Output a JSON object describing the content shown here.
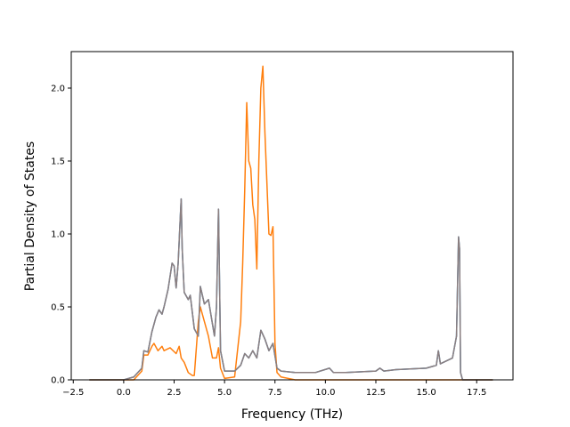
{
  "chart_data": {
    "type": "line",
    "title": "",
    "xlabel": "Frequency (THz)",
    "ylabel": "Partial Density of States",
    "xlim": [
      -2.6,
      19.3
    ],
    "ylim": [
      0,
      2.25
    ],
    "xticks": [
      -2.5,
      0.0,
      2.5,
      5.0,
      7.5,
      10.0,
      12.5,
      15.0,
      17.5
    ],
    "xtick_labels": [
      "−2.5",
      "0.0",
      "2.5",
      "5.0",
      "7.5",
      "10.0",
      "12.5",
      "15.0",
      "17.5"
    ],
    "yticks": [
      0.0,
      0.5,
      1.0,
      1.5,
      2.0
    ],
    "ytick_labels": [
      "0.0",
      "0.5",
      "1.0",
      "1.5",
      "2.0"
    ],
    "grid": false,
    "legend": "none",
    "series": [
      {
        "color": "#1f77b4",
        "x": [
          -1.7,
          0.0,
          0.5,
          0.9,
          1.0,
          1.2,
          1.4,
          1.6,
          1.75,
          1.9,
          2.0,
          2.2,
          2.4,
          2.5,
          2.6,
          2.7,
          2.8,
          2.85,
          2.9,
          3.0,
          3.2,
          3.3,
          3.5,
          3.7,
          3.8,
          4.0,
          4.2,
          4.5,
          4.6,
          4.7,
          4.8,
          5.0,
          5.5,
          5.8,
          6.0,
          6.2,
          6.4,
          6.6,
          6.8,
          7.0,
          7.2,
          7.4,
          7.6,
          7.8,
          8.5,
          9.5,
          10.2,
          10.4,
          11.0,
          12.5,
          12.7,
          12.9,
          13.5,
          15.0,
          15.5,
          15.6,
          15.7,
          16.0,
          16.3,
          16.5,
          16.6,
          16.65,
          16.7,
          16.8,
          18.3
        ],
        "values": [
          0.0,
          0.0,
          0.02,
          0.08,
          0.2,
          0.19,
          0.33,
          0.43,
          0.48,
          0.45,
          0.5,
          0.62,
          0.8,
          0.78,
          0.63,
          0.8,
          1.1,
          1.24,
          0.9,
          0.6,
          0.55,
          0.58,
          0.35,
          0.3,
          0.64,
          0.52,
          0.55,
          0.3,
          0.5,
          1.17,
          0.2,
          0.06,
          0.06,
          0.1,
          0.18,
          0.15,
          0.2,
          0.15,
          0.34,
          0.28,
          0.2,
          0.25,
          0.08,
          0.06,
          0.05,
          0.05,
          0.08,
          0.05,
          0.05,
          0.06,
          0.08,
          0.06,
          0.07,
          0.08,
          0.1,
          0.2,
          0.11,
          0.13,
          0.15,
          0.3,
          0.98,
          0.9,
          0.05,
          0.0,
          0.0
        ]
      },
      {
        "color": "#ff7f0e",
        "x": [
          -1.7,
          0.0,
          0.5,
          0.9,
          1.0,
          1.2,
          1.4,
          1.5,
          1.7,
          1.9,
          2.0,
          2.3,
          2.6,
          2.75,
          2.85,
          3.0,
          3.2,
          3.4,
          3.5,
          3.7,
          3.8,
          4.0,
          4.2,
          4.4,
          4.6,
          4.7,
          4.8,
          5.0,
          5.5,
          5.8,
          5.9,
          6.0,
          6.1,
          6.2,
          6.3,
          6.4,
          6.5,
          6.6,
          6.7,
          6.8,
          6.9,
          7.0,
          7.2,
          7.3,
          7.4,
          7.5,
          7.6,
          7.8,
          8.5,
          10.0,
          12.0,
          15.0,
          16.6,
          16.7,
          16.8,
          18.3
        ],
        "values": [
          0.0,
          0.0,
          0.0,
          0.06,
          0.17,
          0.17,
          0.23,
          0.25,
          0.2,
          0.23,
          0.2,
          0.22,
          0.18,
          0.23,
          0.15,
          0.12,
          0.05,
          0.03,
          0.03,
          0.4,
          0.5,
          0.4,
          0.3,
          0.15,
          0.15,
          0.22,
          0.08,
          0.01,
          0.02,
          0.4,
          0.8,
          1.3,
          1.9,
          1.5,
          1.45,
          1.2,
          1.1,
          0.76,
          1.5,
          2.0,
          2.15,
          1.7,
          1.0,
          0.99,
          1.05,
          0.25,
          0.05,
          0.02,
          0.0,
          0.0,
          0.0,
          0.0,
          0.0,
          0.0,
          0.0,
          0.0
        ]
      },
      {
        "color": "#8c7f80",
        "x": [
          -1.7,
          0.0,
          0.5,
          0.9,
          1.0,
          1.2,
          1.4,
          1.6,
          1.75,
          1.9,
          2.0,
          2.2,
          2.4,
          2.5,
          2.6,
          2.7,
          2.8,
          2.85,
          2.9,
          3.0,
          3.2,
          3.3,
          3.5,
          3.7,
          3.8,
          4.0,
          4.2,
          4.5,
          4.6,
          4.7,
          4.8,
          5.0,
          5.5,
          5.8,
          6.0,
          6.2,
          6.4,
          6.6,
          6.8,
          7.0,
          7.2,
          7.4,
          7.6,
          7.8,
          8.5,
          9.5,
          10.2,
          10.4,
          11.0,
          12.5,
          12.7,
          12.9,
          13.5,
          15.0,
          15.5,
          15.6,
          15.7,
          16.0,
          16.3,
          16.5,
          16.6,
          16.65,
          16.7,
          16.8,
          18.3
        ],
        "values": [
          0.0,
          0.0,
          0.02,
          0.08,
          0.2,
          0.19,
          0.33,
          0.43,
          0.48,
          0.45,
          0.5,
          0.62,
          0.8,
          0.78,
          0.63,
          0.8,
          1.1,
          1.24,
          0.9,
          0.6,
          0.55,
          0.58,
          0.35,
          0.3,
          0.64,
          0.52,
          0.55,
          0.3,
          0.5,
          1.17,
          0.2,
          0.06,
          0.06,
          0.1,
          0.18,
          0.15,
          0.2,
          0.15,
          0.34,
          0.28,
          0.2,
          0.25,
          0.08,
          0.06,
          0.05,
          0.05,
          0.08,
          0.05,
          0.05,
          0.06,
          0.08,
          0.06,
          0.07,
          0.08,
          0.1,
          0.2,
          0.11,
          0.13,
          0.15,
          0.3,
          0.98,
          0.9,
          0.05,
          0.0,
          0.0
        ]
      }
    ]
  }
}
